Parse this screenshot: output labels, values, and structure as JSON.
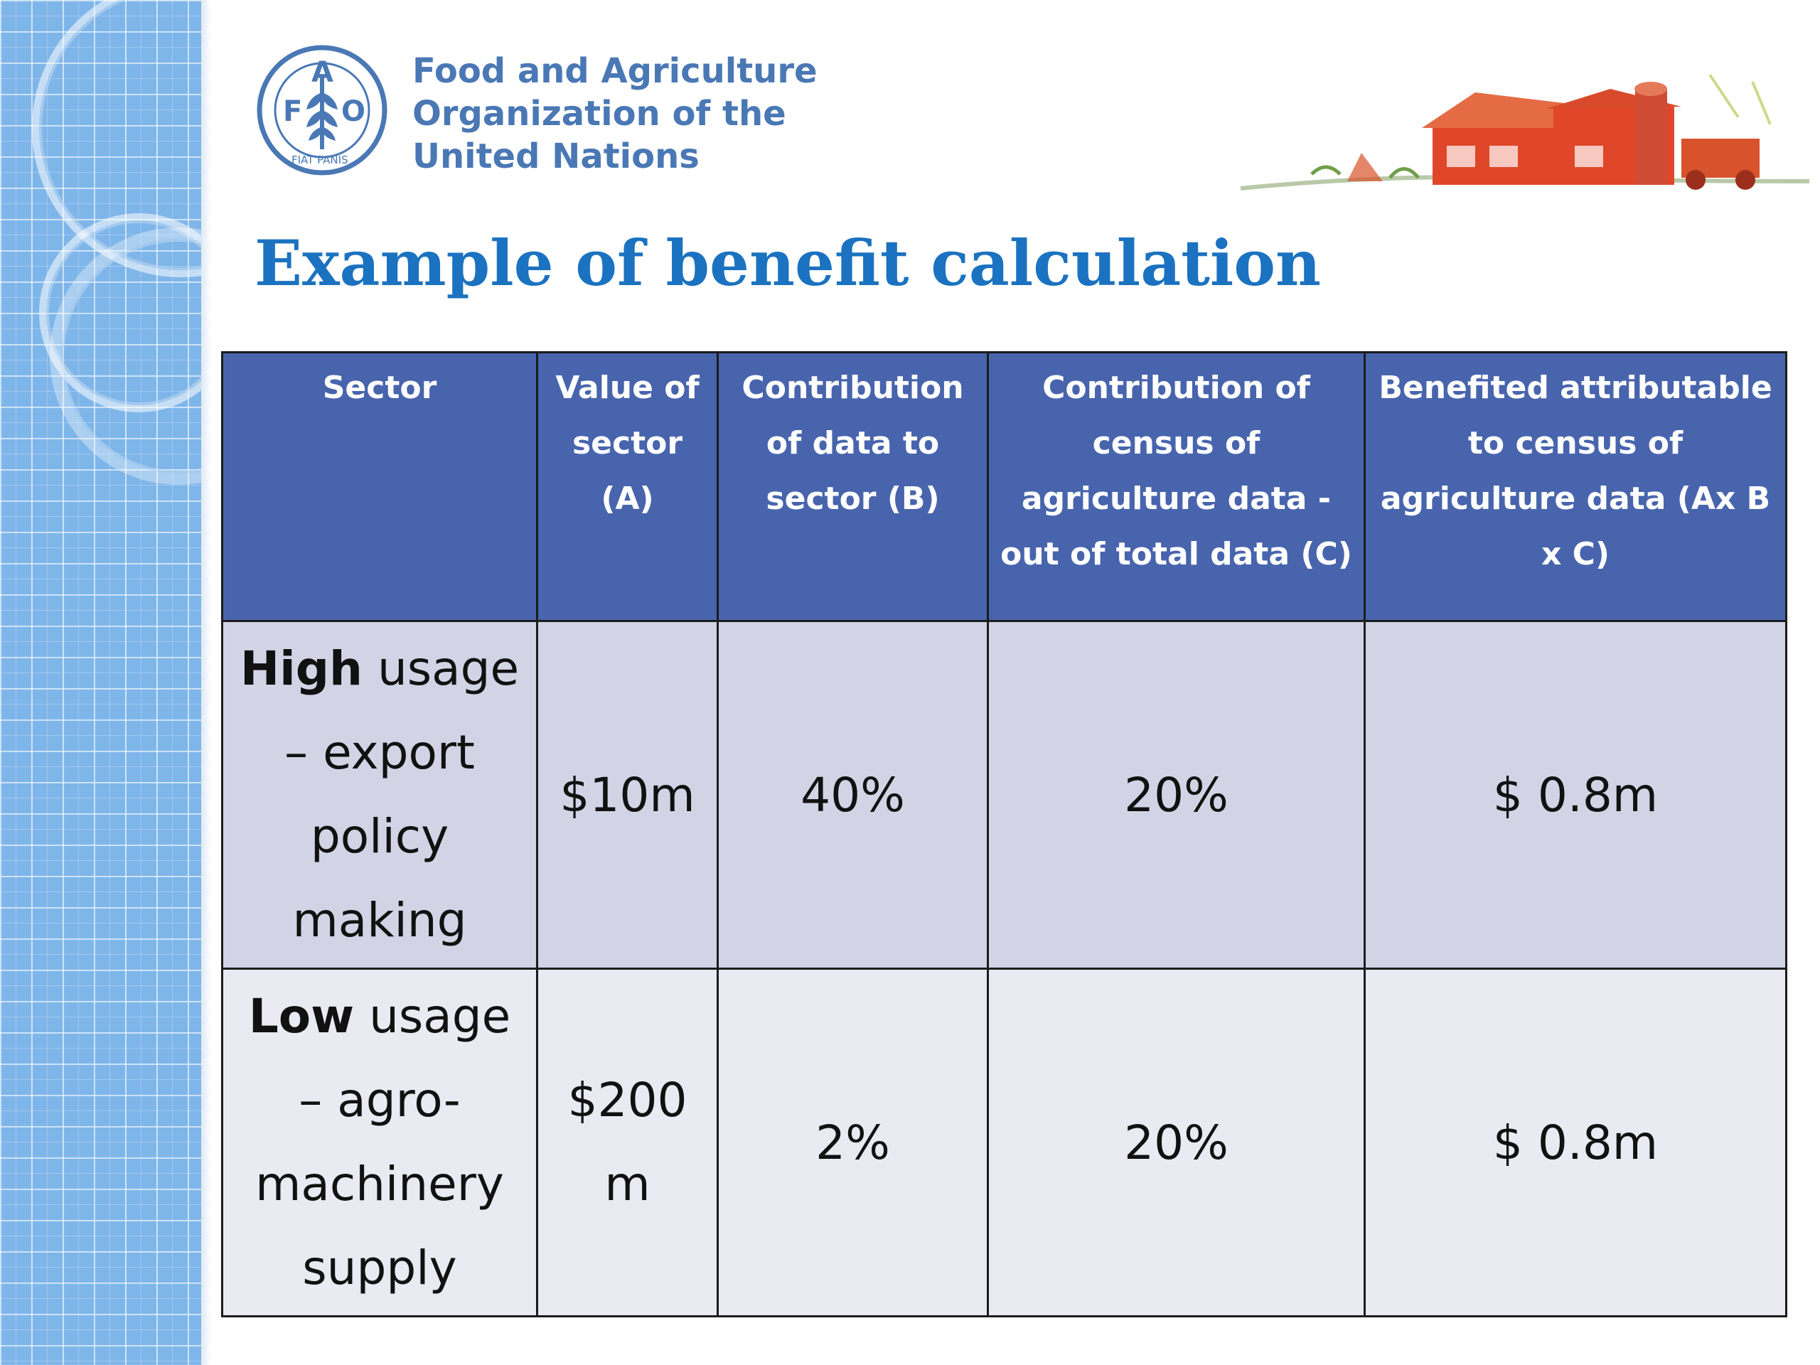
{
  "header": {
    "org_name_lines": [
      "Food and Agriculture",
      "Organization of the",
      "United Nations"
    ],
    "logo_letters": [
      "F",
      "A",
      "O"
    ],
    "logo_motto": "FIAT PANIS",
    "title": "Example of benefit calculation"
  },
  "table": {
    "headers": [
      "Sector",
      "Value of sector (A)",
      "Contribution of data to sector (B)",
      "Contribution of census of agriculture data  - out of total data (C)",
      "Benefited attributable to census of agriculture data (Ax  B x C)"
    ],
    "rows": [
      {
        "sector_bold": "High",
        "sector_rest": " usage – export policy making",
        "value": "$10m",
        "contribution_b": "40%",
        "contribution_c": "20%",
        "benefit": "$ 0.8m"
      },
      {
        "sector_bold": "Low",
        "sector_rest": " usage – agro-machinery supply",
        "value": "$200 m",
        "contribution_b": "2%",
        "contribution_c": "20%",
        "benefit": "$ 0.8m"
      }
    ]
  },
  "colors": {
    "title": "#1b72c0",
    "header_bg": "#4864ad",
    "row1_bg": "#d2d4e6",
    "row2_bg": "#e9eaf2",
    "org_text": "#4a78b5"
  }
}
